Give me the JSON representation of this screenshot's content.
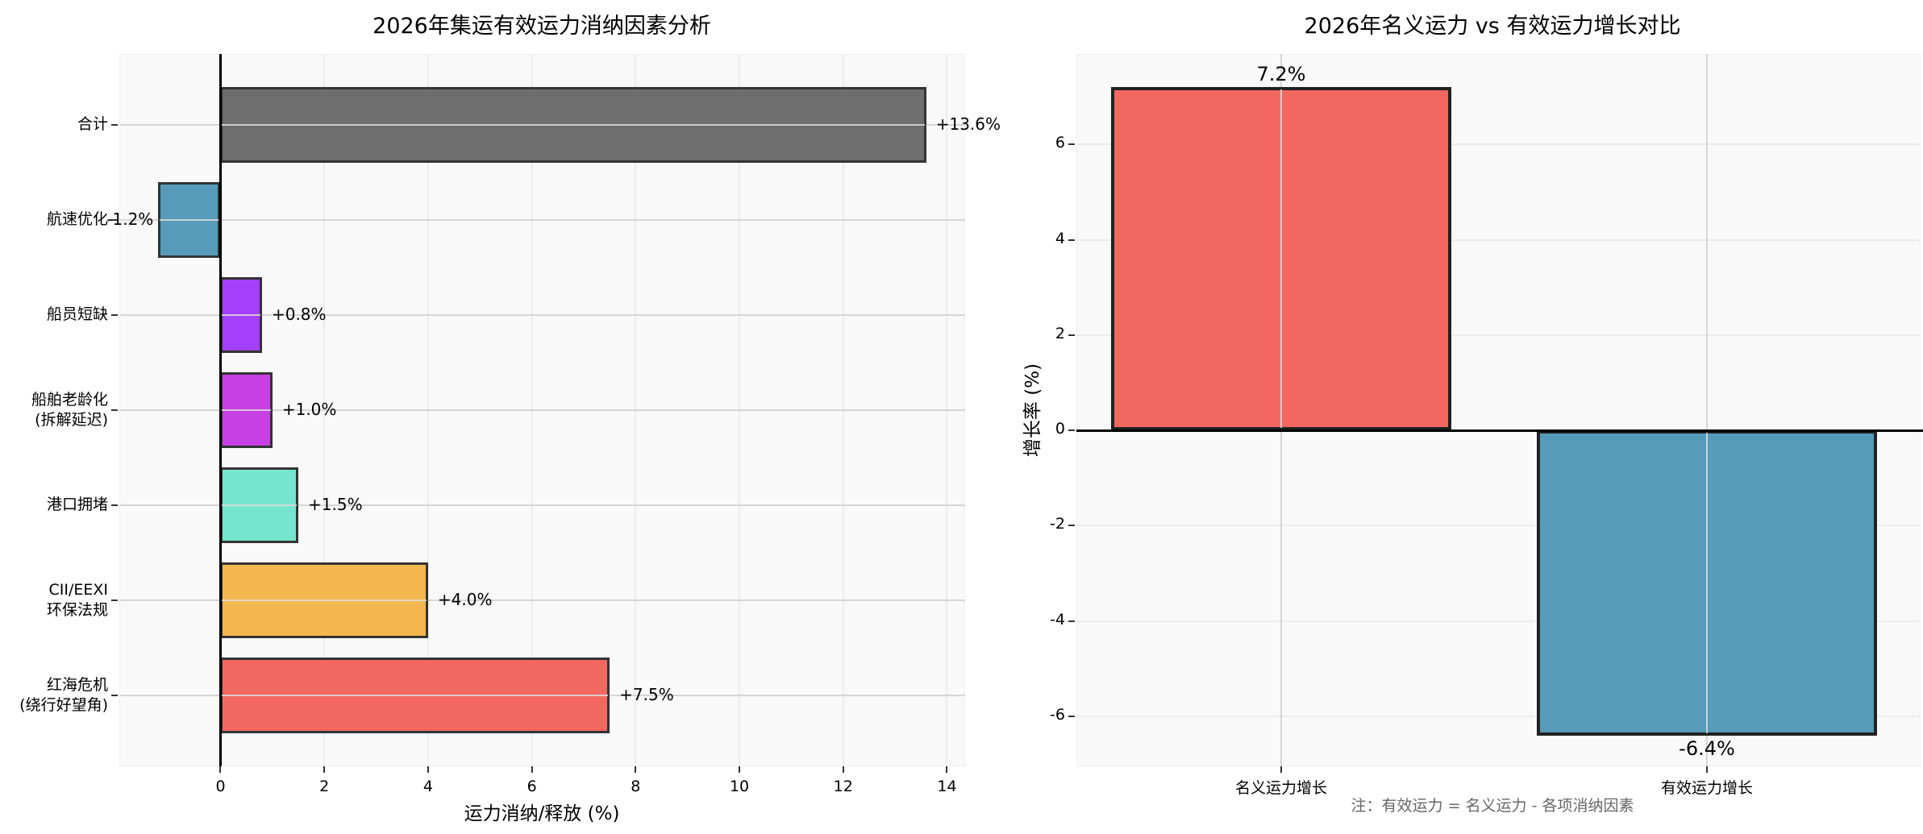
{
  "left_chart": {
    "title": "2026年集运有效运力消纳因素分析",
    "xlabel": "运力消纳/释放 (%)",
    "xticks": [
      "0",
      "2",
      "4",
      "6",
      "8",
      "10",
      "12",
      "14"
    ],
    "categories": [
      {
        "label_line1": "合计",
        "label_line2": "",
        "value": 13.6,
        "value_label": "+13.6%",
        "color": "#6e6e6e"
      },
      {
        "label_line1": "航速优化",
        "label_line2": "",
        "value": -1.2,
        "value_label": "-1.2%",
        "color": "#569bb9"
      },
      {
        "label_line1": "船员短缺",
        "label_line2": "",
        "value": 0.8,
        "value_label": "+0.8%",
        "color": "#a43ffa"
      },
      {
        "label_line1": "船舶老龄化",
        "label_line2": "(拆解延迟)",
        "value": 1.0,
        "value_label": "+1.0%",
        "color": "#c840e4"
      },
      {
        "label_line1": "港口拥堵",
        "label_line2": "",
        "value": 1.5,
        "value_label": "+1.5%",
        "color": "#75e6cd"
      },
      {
        "label_line1": "CII/EEXI",
        "label_line2": "环保法规",
        "value": 4.0,
        "value_label": "+4.0%",
        "color": "#f5b74f"
      },
      {
        "label_line1": "红海危机",
        "label_line2": "(绕行好望角)",
        "value": 7.5,
        "value_label": "+7.5%",
        "color": "#f26860"
      }
    ]
  },
  "right_chart": {
    "title": "2026年名义运力 vs 有效运力增长对比",
    "ylabel": "增长率 (%)",
    "yticks": [
      "6",
      "4",
      "2",
      "0",
      "-2",
      "-4",
      "-6"
    ],
    "bars": [
      {
        "label": "名义运力增长",
        "value": 7.2,
        "value_label": "7.2%",
        "color": "#f26860"
      },
      {
        "label": "有效运力增长",
        "value": -6.4,
        "value_label": "-6.4%",
        "color": "#569bb9"
      }
    ],
    "note": "注：有效运力 = 名义运力 - 各项消纳因素"
  },
  "chart_data": [
    {
      "type": "bar",
      "orientation": "horizontal",
      "title": "2026年集运有效运力消纳因素分析",
      "xlabel": "运力消纳/释放 (%)",
      "ylabel": "",
      "categories": [
        "合计",
        "航速优化",
        "船员短缺",
        "船舶老龄化 (拆解延迟)",
        "港口拥堵",
        "CII/EEXI 环保法规",
        "红海危机 (绕行好望角)"
      ],
      "values": [
        13.6,
        -1.2,
        0.8,
        1.0,
        1.5,
        4.0,
        7.5
      ],
      "data_labels": [
        "+13.6%",
        "-1.2%",
        "+0.8%",
        "+1.0%",
        "+1.5%",
        "+4.0%",
        "+7.5%"
      ],
      "colors": [
        "#6e6e6e",
        "#569bb9",
        "#a43ffa",
        "#c840e4",
        "#75e6cd",
        "#f5b74f",
        "#f26860"
      ],
      "xlim": [
        -1.95,
        14.35
      ],
      "xticks": [
        0,
        2,
        4,
        6,
        8,
        10,
        12,
        14
      ],
      "grid": true,
      "legend": null
    },
    {
      "type": "bar",
      "orientation": "vertical",
      "title": "2026年名义运力 vs 有效运力增长对比",
      "xlabel": "",
      "ylabel": "增长率 (%)",
      "categories": [
        "名义运力增长",
        "有效运力增长"
      ],
      "values": [
        7.2,
        -6.4
      ],
      "data_labels": [
        "7.2%",
        "-6.4%"
      ],
      "colors": [
        "#f26860",
        "#569bb9"
      ],
      "ylim": [
        -7.05,
        7.9
      ],
      "yticks": [
        -6,
        -4,
        -2,
        0,
        2,
        4,
        6
      ],
      "grid": true,
      "legend": null,
      "annotation": "注：有效运力 = 名义运力 - 各项消纳因素"
    }
  ]
}
